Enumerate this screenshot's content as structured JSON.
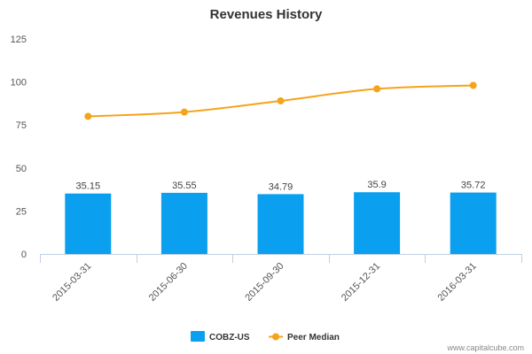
{
  "chart_data": {
    "type": "bar",
    "title": "Revenues History",
    "xlabel": "",
    "ylabel": "",
    "categories": [
      "2015-03-31",
      "2015-06-30",
      "2015-09-30",
      "2015-12-31",
      "2016-03-31"
    ],
    "ylim": [
      0,
      125
    ],
    "yticks": [
      "0",
      "25",
      "50",
      "75",
      "100",
      "125"
    ],
    "grid": false,
    "legend_position": "bottom-center",
    "series": [
      {
        "name": "COBZ-US",
        "type": "bar",
        "color": "#0aa0ef",
        "values": [
          35.15,
          35.55,
          34.79,
          35.9,
          35.72
        ],
        "labels": [
          "35.15",
          "35.55",
          "34.79",
          "35.9",
          "35.72"
        ]
      },
      {
        "name": "Peer Median",
        "type": "line",
        "color": "#f5a31a",
        "values": [
          80,
          82.5,
          89,
          96,
          98
        ]
      }
    ]
  },
  "credit": "www.capitalcube.com"
}
